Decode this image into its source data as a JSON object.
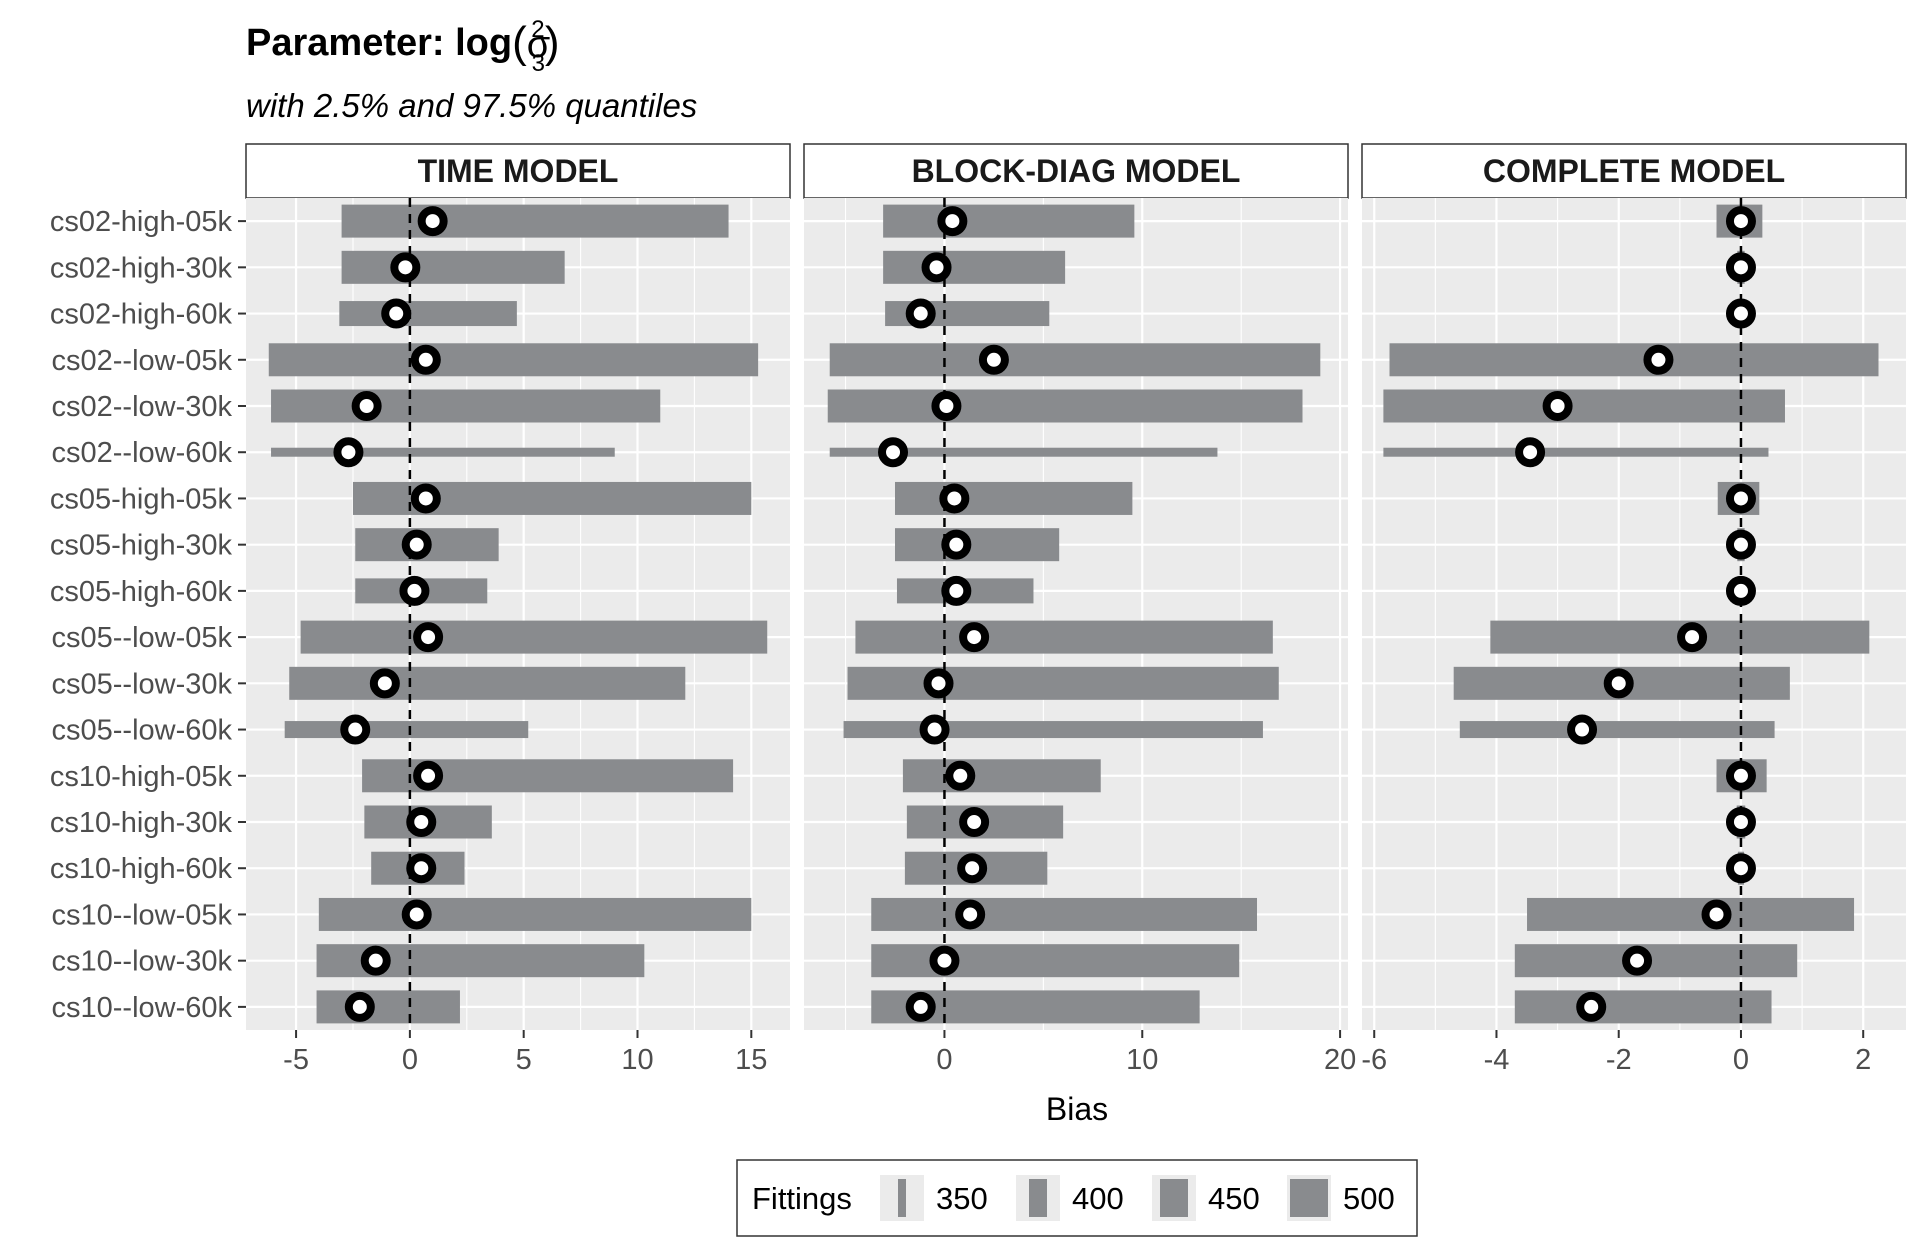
{
  "chart_data": {
    "type": "bar",
    "title": "Parameter: log(σ²₃)",
    "title_parts": {
      "prefix": "Parameter: log",
      "base": "σ",
      "sup": "2",
      "sub": "3"
    },
    "subtitle": "with 2.5% and 97.5% quantiles",
    "xlabel": "Bias",
    "ylabel": "",
    "grid": true,
    "legend_position": "bottom",
    "colors": {
      "bar": "#898b8e",
      "panel": "#ebebeb",
      "point_fill": "#ffffff",
      "point_stroke": "#000000"
    },
    "categories": [
      "cs02-high-05k",
      "cs02-high-30k",
      "cs02-high-60k",
      "cs02--low-05k",
      "cs02--low-30k",
      "cs02--low-60k",
      "cs05-high-05k",
      "cs05-high-30k",
      "cs05-high-60k",
      "cs05--low-05k",
      "cs05--low-30k",
      "cs05--low-60k",
      "cs10-high-05k",
      "cs10-high-30k",
      "cs10-high-60k",
      "cs10--low-05k",
      "cs10--low-30k",
      "cs10--low-60k"
    ],
    "fittings": [
      500,
      500,
      450,
      500,
      500,
      350,
      500,
      500,
      450,
      500,
      500,
      400,
      500,
      500,
      500,
      500,
      500,
      500
    ],
    "legend": {
      "title": "Fittings",
      "entries": [
        350,
        400,
        450,
        500
      ],
      "labels": [
        "350",
        "400",
        "450",
        "500"
      ]
    },
    "panels": [
      {
        "name": "TIME MODEL",
        "xlim": [
          -7.2,
          16.7
        ],
        "xticks": [
          -5,
          0,
          5,
          10,
          15
        ],
        "xtick_labels": [
          "-5",
          "0",
          "5",
          "10",
          "15"
        ],
        "lower": [
          -3.0,
          -3.0,
          -3.1,
          -6.2,
          -6.1,
          -6.1,
          -2.5,
          -2.4,
          -2.4,
          -4.8,
          -5.3,
          -5.5,
          -2.1,
          -2.0,
          -1.7,
          -4.0,
          -4.1,
          -4.1
        ],
        "upper": [
          14.0,
          6.8,
          4.7,
          15.3,
          11.0,
          9.0,
          15.0,
          3.9,
          3.4,
          15.7,
          12.1,
          5.2,
          14.2,
          3.6,
          2.4,
          15.0,
          10.3,
          2.2
        ],
        "bias": [
          1.0,
          -0.2,
          -0.6,
          0.7,
          -1.9,
          -2.7,
          0.7,
          0.3,
          0.2,
          0.8,
          -1.1,
          -2.4,
          0.8,
          0.5,
          0.5,
          0.3,
          -1.5,
          -2.2
        ]
      },
      {
        "name": "BLOCK-DIAG MODEL",
        "xlim": [
          -7.1,
          20.4
        ],
        "xticks": [
          0,
          10,
          20
        ],
        "xtick_labels": [
          "0",
          "10",
          "20"
        ],
        "lower": [
          -3.1,
          -3.1,
          -3.0,
          -5.8,
          -5.9,
          -5.8,
          -2.5,
          -2.5,
          -2.4,
          -4.5,
          -4.9,
          -5.1,
          -2.1,
          -1.9,
          -2.0,
          -3.7,
          -3.7,
          -3.7
        ],
        "upper": [
          9.6,
          6.1,
          5.3,
          19.0,
          18.1,
          13.8,
          9.5,
          5.8,
          4.5,
          16.6,
          16.9,
          16.1,
          7.9,
          6.0,
          5.2,
          15.8,
          14.9,
          12.9
        ],
        "bias": [
          0.4,
          -0.4,
          -1.2,
          2.5,
          0.1,
          -2.6,
          0.5,
          0.6,
          0.6,
          1.5,
          -0.3,
          -0.5,
          0.8,
          1.5,
          1.4,
          1.3,
          0.0,
          -1.2
        ]
      },
      {
        "name": "COMPLETE MODEL",
        "xlim": [
          -6.2,
          2.7
        ],
        "xticks": [
          -6,
          -4,
          -2,
          0,
          2
        ],
        "xtick_labels": [
          "-6",
          "-4",
          "-2",
          "0",
          "2"
        ],
        "lower": [
          -0.4,
          -0.06,
          -0.05,
          -5.75,
          -5.85,
          -5.85,
          -0.38,
          -0.06,
          -0.05,
          -4.1,
          -4.7,
          -4.6,
          -0.4,
          -0.07,
          -0.05,
          -3.5,
          -3.7,
          -3.7
        ],
        "upper": [
          0.35,
          0.06,
          0.05,
          2.25,
          0.72,
          0.45,
          0.3,
          0.06,
          0.05,
          2.1,
          0.8,
          0.55,
          0.42,
          0.07,
          0.05,
          1.85,
          0.92,
          0.5
        ],
        "bias": [
          0.0,
          0.0,
          0.0,
          -1.35,
          -3.0,
          -3.45,
          0.0,
          0.0,
          0.0,
          -0.8,
          -2.0,
          -2.6,
          0.0,
          0.0,
          0.0,
          -0.4,
          -1.7,
          -2.45
        ]
      }
    ]
  }
}
